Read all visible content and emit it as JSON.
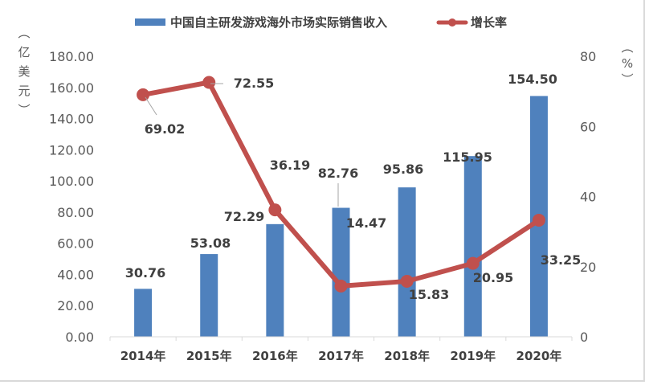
{
  "chart_data": {
    "type": "bar+line",
    "title": "",
    "categories": [
      "2014年",
      "2015年",
      "2016年",
      "2017年",
      "2018年",
      "2019年",
      "2020年"
    ],
    "series": [
      {
        "name": "中国自主研发游戏海外市场实际销售收入",
        "type": "bar",
        "axis": "left",
        "color": "#4f81bd",
        "values": [
          30.76,
          53.08,
          72.29,
          82.76,
          95.86,
          115.95,
          154.5
        ],
        "labels": [
          "30.76",
          "53.08",
          "72.29",
          "82.76",
          "95.86",
          "115.95",
          "154.50"
        ]
      },
      {
        "name": "增长率",
        "type": "line",
        "axis": "right",
        "color": "#c0504d",
        "values": [
          69.02,
          72.55,
          36.19,
          14.47,
          15.83,
          20.95,
          33.25
        ],
        "labels": [
          "69.02",
          "72.55",
          "36.19",
          "14.47",
          "15.83",
          "20.95",
          "33.25"
        ]
      }
    ],
    "ylabel_left": "（亿美元）",
    "ylabel_right": "（%）",
    "ylim_left": [
      0,
      180
    ],
    "ylim_right": [
      0,
      80
    ],
    "yticks_left": [
      "0.00",
      "20.00",
      "40.00",
      "60.00",
      "80.00",
      "100.00",
      "120.00",
      "140.00",
      "160.00",
      "180.00"
    ],
    "yticks_right": [
      "0",
      "20",
      "40",
      "60",
      "80"
    ],
    "legend_position": "top",
    "grid": false
  },
  "legend": {
    "bar": "中国自主研发游戏海外市场实际销售收入",
    "line": "增长率"
  },
  "axis_titles": {
    "left_chars": [
      "︵",
      "亿",
      "美",
      "元",
      "︶"
    ],
    "right_chars": [
      "︵",
      "%",
      "︶"
    ]
  }
}
